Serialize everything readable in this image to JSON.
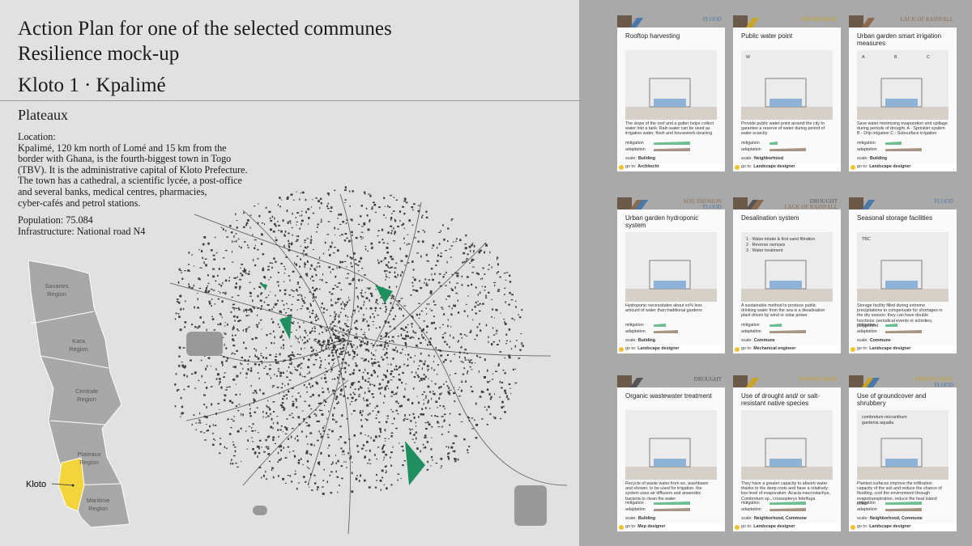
{
  "header": {
    "title_lines": [
      "Action Plan for one of the selected communes",
      "Resilience mock-up"
    ],
    "place": "Kloto 1 · Kpalimé",
    "region": "Plateaux"
  },
  "info": {
    "location_label": "Location:",
    "lines": [
      "Kpalimé, 120 km north of Lomé and 15 km from the",
      "border with Ghana, is the fourth-biggest town in Togo",
      "(TBV). It is the administrative capital of Kloto Prefecture.",
      "The town has a cathedral, a scientific lycée, a post-office",
      "and several banks, medical centres, pharmacies,",
      "cyber-cafés and petrol stations."
    ],
    "population": "Population: 75.084",
    "infrastructure": "Infrastructure: National road N4"
  },
  "togo_map": {
    "regions": [
      [
        "Savanes",
        "Region"
      ],
      [
        "Kara",
        "Region"
      ],
      [
        "Centrale",
        "Region"
      ],
      [
        "Plateaux",
        "Region"
      ],
      [
        "Maritime",
        "Region"
      ]
    ],
    "highlight": "Kloto"
  },
  "card_labels": {
    "mitigation": "mitigation",
    "adaptation": "adaptation",
    "scale": "scale:",
    "goto": "go to:"
  },
  "cards": [
    {
      "tags": [
        {
          "label": "FLOOD",
          "color": "#4a78a8"
        }
      ],
      "title": "Rooftop harvesting",
      "labels": [],
      "description": "The slope of the roof and a gutter helps collect water into a tank. Rain water can be used as irrigation water, flush and housework cleaning",
      "mitigation": 0.9,
      "adaptation": 0.9,
      "scale": "Building",
      "goto": "Architecht"
    },
    {
      "tags": [
        {
          "label": "STRONG HEAT",
          "color": "#c9a227"
        }
      ],
      "title": "Public water point",
      "labels": [
        "W"
      ],
      "description": "Provide public water point around the city to garantee a reserve of water during period of water scarcity",
      "mitigation": 0.2,
      "adaptation": 0.9,
      "scale": "Neighborhood",
      "goto": "Landscape designer"
    },
    {
      "tags": [
        {
          "label": "LACK OF RAINFALL",
          "color": "#8b6a4f"
        }
      ],
      "title": "Urban garden smart irrigation measures",
      "labels": [
        "A",
        "B",
        "C"
      ],
      "description": "Save water minimizing evaporation and spillage during periods of drought. A - Sprinkler system B - Drip irrigation C - Subsurface irrigation",
      "mitigation": 0.4,
      "adaptation": 0.9,
      "scale": "Building",
      "goto": "Landscape designer"
    },
    {
      "tags": [
        {
          "label": "SOIL EROSION",
          "color": "#8b6a4f"
        },
        {
          "label": "FLOOD",
          "color": "#4a78a8"
        }
      ],
      "title": "Urban garden hydroponic system",
      "labels": [],
      "description": "Hydroponic necessitates about xx% less amount of water than traditional gardens",
      "mitigation": 0.3,
      "adaptation": 0.6,
      "scale": "Building",
      "goto": "Landscape designer"
    },
    {
      "tags": [
        {
          "label": "DROUGHT",
          "color": "#555555"
        },
        {
          "label": "LACK OF RAINFALL",
          "color": "#8b6a4f"
        }
      ],
      "title": "Desalination system",
      "labels": [
        "1 · Water intake & first sand filtration",
        "2 · Reverse osmosis",
        "3 · Water treatment"
      ],
      "description": "A sustainable method to produce public drinking water from the sea is a desalination plant driven by wind or solar power",
      "mitigation": 0.3,
      "adaptation": 0.9,
      "scale": "Commune",
      "goto": "Mechanical engineer"
    },
    {
      "tags": [
        {
          "label": "FLOOD",
          "color": "#4a78a8"
        }
      ],
      "title": "Seasonal storage facilities",
      "labels": [
        "TBC"
      ],
      "description": "Storage facility filled during extreme precipitations to compensate for shortages in the dry season: they can have double functions: periodical events or activities, playground",
      "mitigation": 0.3,
      "adaptation": 0.9,
      "scale": "Commune",
      "goto": "Landscape designer"
    },
    {
      "tags": [
        {
          "label": "DROUGHT",
          "color": "#555555"
        }
      ],
      "title": "Organic wastewater treatment",
      "labels": [],
      "description": "Recycle of waste water from wc, washbasin and shower, to be used for irrigation. the system uses air diffusers and anaerobic bacteria to clean the water",
      "mitigation": 0.9,
      "adaptation": 0.9,
      "scale": "Building",
      "goto": "Mep designer"
    },
    {
      "tags": [
        {
          "label": "STRONG HEAT",
          "color": "#c9a227"
        }
      ],
      "title": "Use of drought and/ or salt-resistant native species",
      "labels": [],
      "description": "They have a greater capacity to absorb water thanks to the deep roots and have a relatively low level of evaporation: Acacia macrostachya, Combretum sp., crossopteryx febrifuga",
      "mitigation": 0.9,
      "adaptation": 0.9,
      "scale": "Neighborhood, Commune",
      "goto": "Landscape designer"
    },
    {
      "tags": [
        {
          "label": "STRONG HEAT",
          "color": "#c9a227"
        },
        {
          "label": "FLOOD",
          "color": "#4a78a8"
        }
      ],
      "title": "Use of groundcover and shrubbery",
      "labels": [
        "combretum micranthum",
        "gardenia aqualla"
      ],
      "description": "Planted surfaces improve the infiltration capacity of the soil and reduce the chance of flooding, cool the environment through evapotranspiration, reduce the heat island effect",
      "mitigation": 0.9,
      "adaptation": 0.9,
      "scale": "Neighborhood, Commune",
      "goto": "Landscape designer"
    }
  ]
}
